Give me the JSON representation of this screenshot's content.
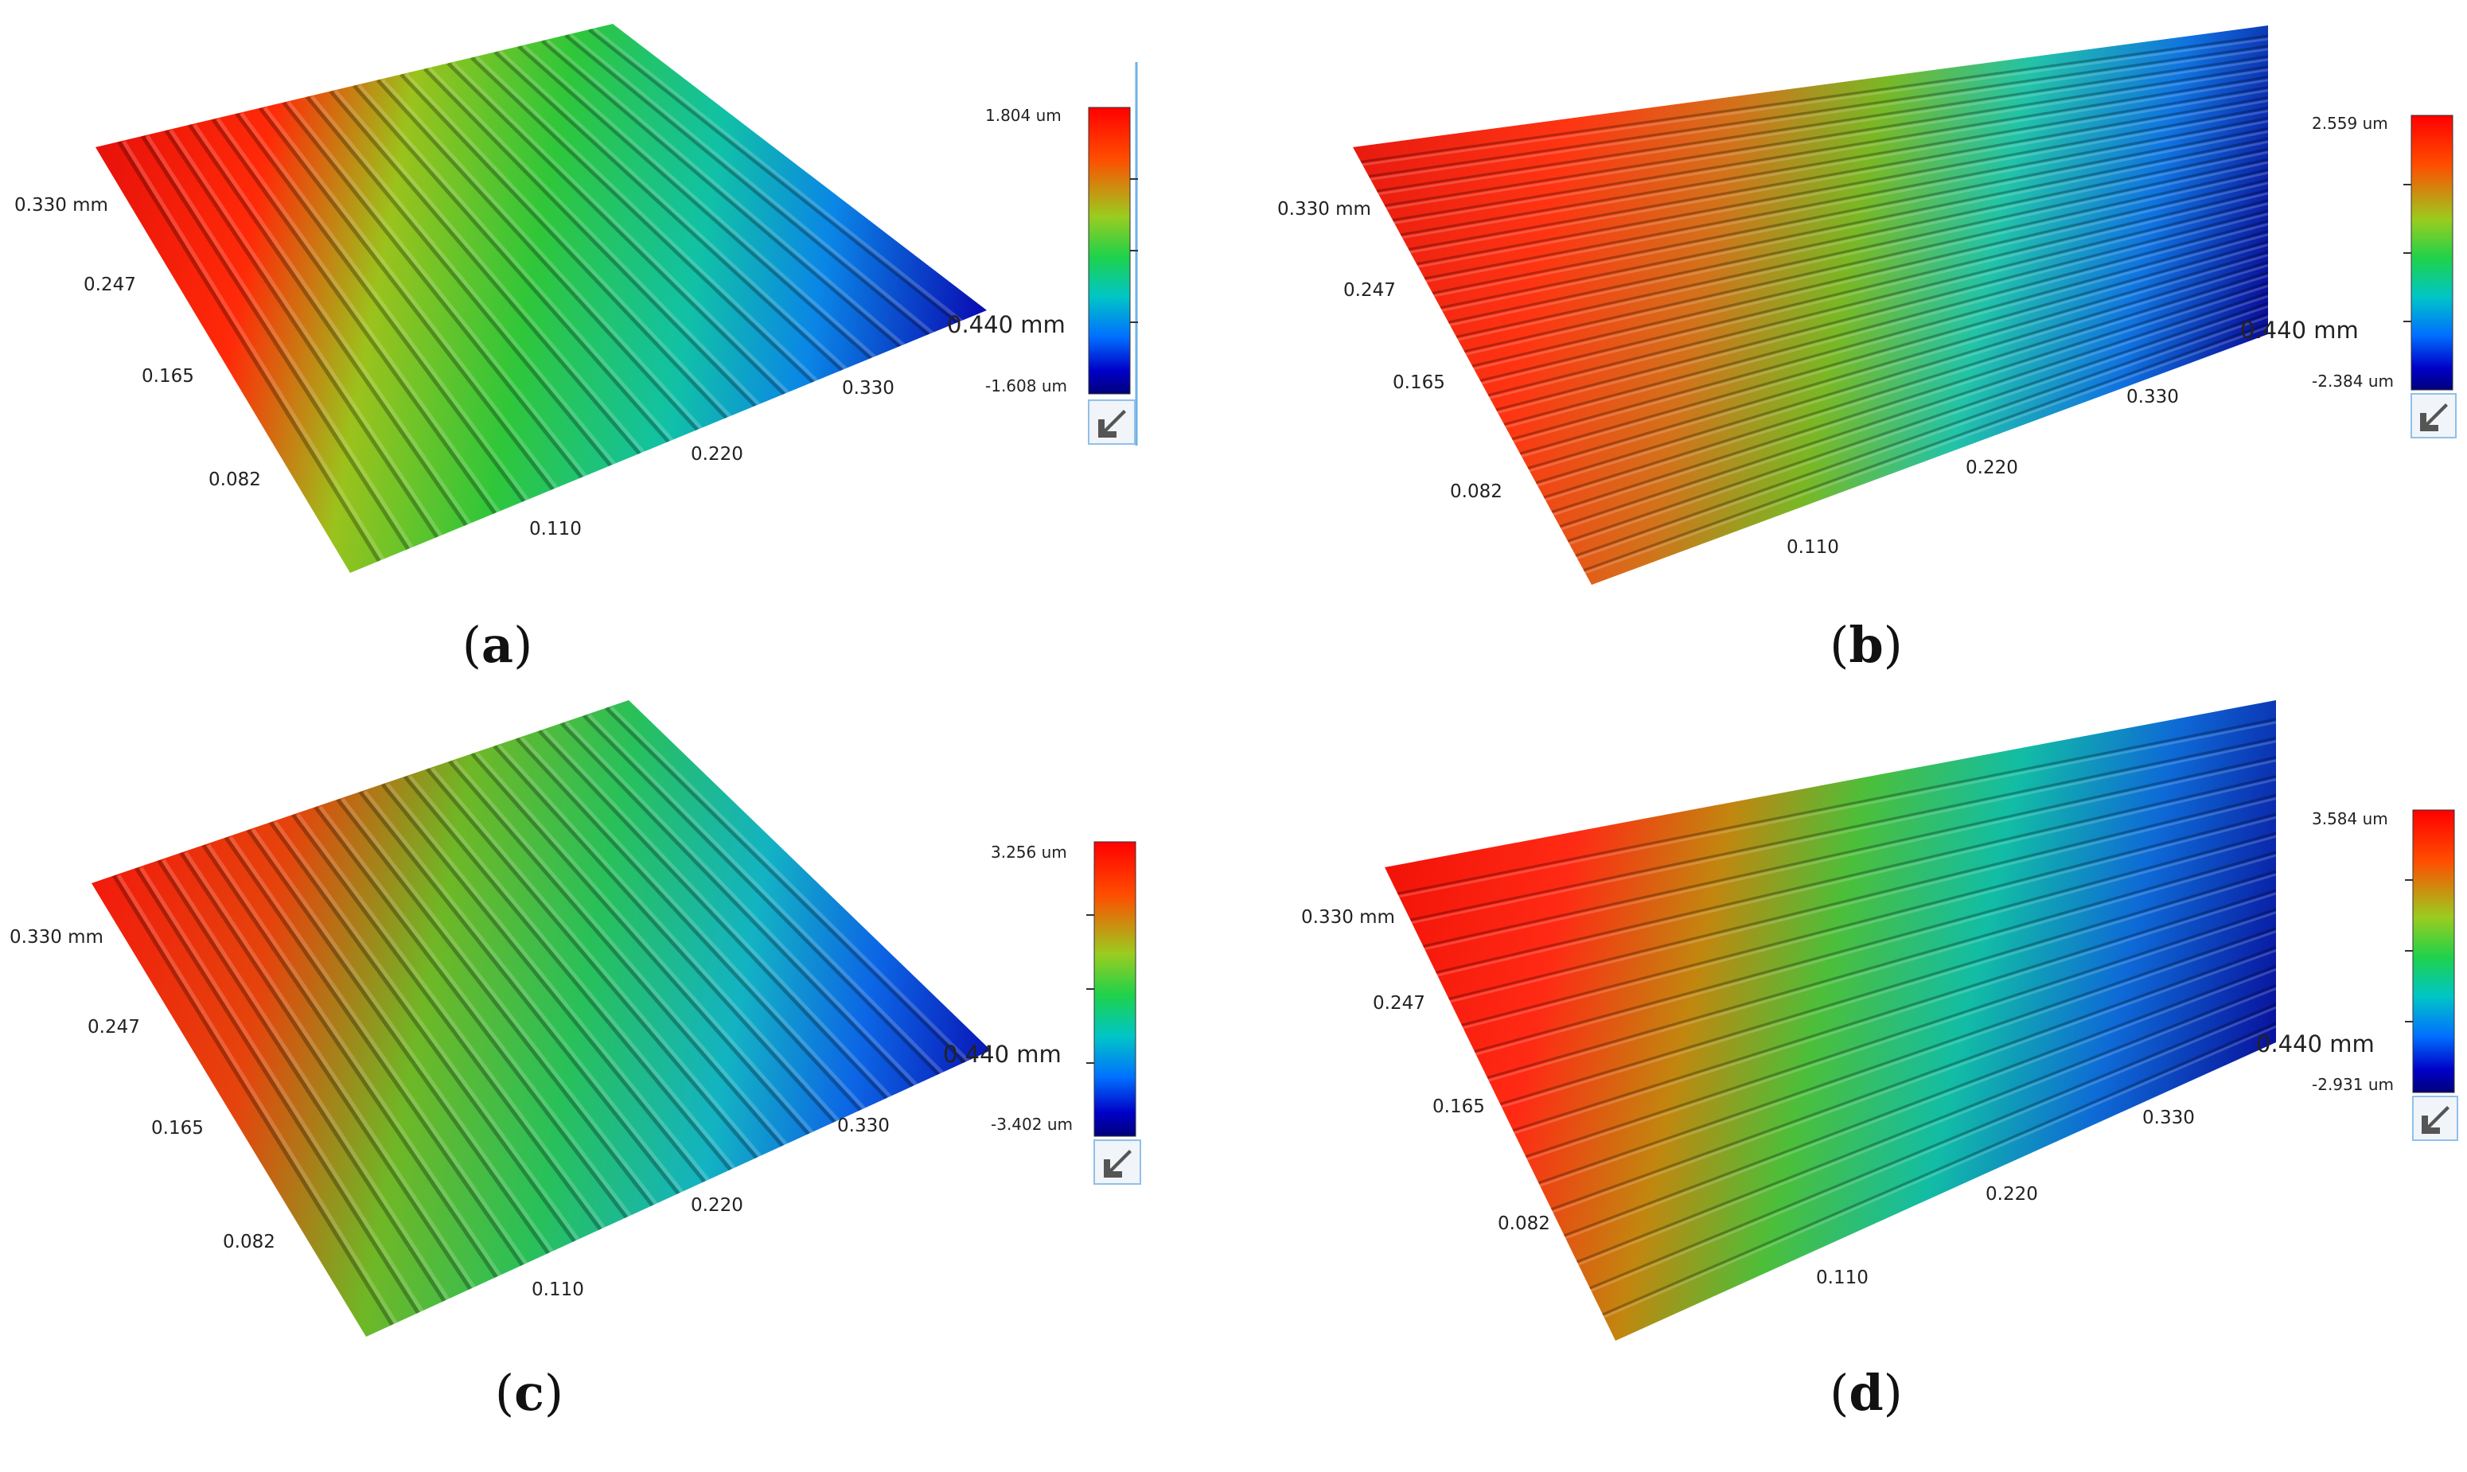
{
  "panels": [
    {
      "id": "a",
      "caption_letter": "a",
      "y_labels": [
        "0.330 mm",
        "0.247",
        "0.165",
        "0.082"
      ],
      "x_labels": [
        "0.110",
        "0.220",
        "0.330",
        "0.440 mm"
      ],
      "scale_max": "1.804 um",
      "scale_min": "-1.608 um",
      "surface": {
        "left_color": "red",
        "right_color": "blue",
        "stripe_direction": "diagonal",
        "ridges": 22
      }
    },
    {
      "id": "b",
      "caption_letter": "b",
      "y_labels": [
        "0.330 mm",
        "0.247",
        "0.165",
        "0.082"
      ],
      "x_labels": [
        "0.110",
        "0.220",
        "0.330",
        "0.440 mm"
      ],
      "scale_max": "2.559 um",
      "scale_min": "-2.384 um",
      "surface": {
        "left_color": "red",
        "right_color": "blue",
        "stripe_direction": "horizontal",
        "ridges": 30
      }
    },
    {
      "id": "c",
      "caption_letter": "c",
      "y_labels": [
        "0.330 mm",
        "0.247",
        "0.165",
        "0.082"
      ],
      "x_labels": [
        "0.110",
        "0.220",
        "0.330",
        "0.440 mm"
      ],
      "scale_max": "3.256 um",
      "scale_min": "-3.402 um",
      "surface": {
        "left_color": "red",
        "right_color": "blue",
        "stripe_direction": "diagonal",
        "ridges": 24
      }
    },
    {
      "id": "d",
      "caption_letter": "d",
      "y_labels": [
        "0.330 mm",
        "0.247",
        "0.165",
        "0.082"
      ],
      "x_labels": [
        "0.110",
        "0.220",
        "0.330",
        "0.440 mm"
      ],
      "scale_max": "3.584 um",
      "scale_min": "-2.931 um",
      "surface": {
        "left_color": "red",
        "right_color": "blue",
        "stripe_direction": "horizontal",
        "ridges": 18
      }
    }
  ],
  "colorbar_icon": "arrow-down-left-icon",
  "colors": {
    "jet": [
      "#7f0000",
      "#ff1a00",
      "#ff9900",
      "#7fd11a",
      "#22d24a",
      "#00b8c8",
      "#0066ff",
      "#0000a8",
      "#00008f"
    ]
  }
}
